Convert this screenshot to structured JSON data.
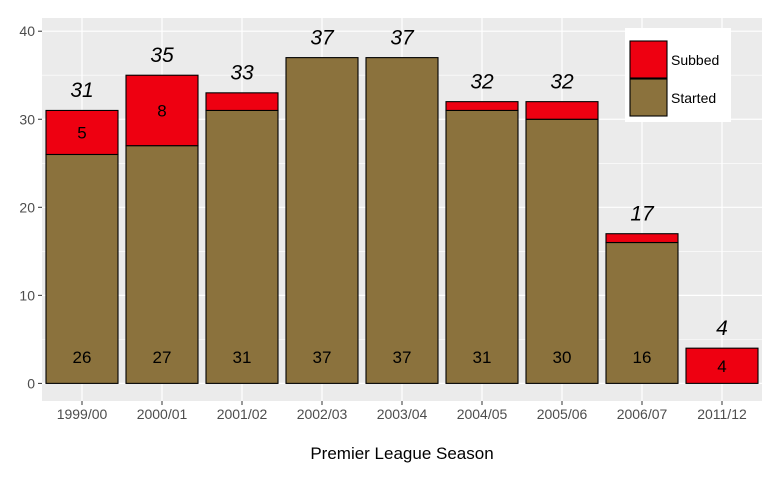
{
  "chart_data": {
    "type": "bar",
    "stacked": true,
    "categories": [
      "1999/00",
      "2000/01",
      "2001/02",
      "2002/03",
      "2003/04",
      "2004/05",
      "2005/06",
      "2006/07",
      "2011/12"
    ],
    "series": [
      {
        "name": "Started",
        "color": "#8B723D",
        "values": [
          26,
          27,
          31,
          37,
          37,
          31,
          30,
          16,
          0
        ]
      },
      {
        "name": "Subbed",
        "color": "#EE0011",
        "values": [
          5,
          8,
          2,
          0,
          0,
          1,
          2,
          1,
          4
        ]
      }
    ],
    "totals": [
      31,
      35,
      33,
      37,
      37,
      32,
      32,
      17,
      4
    ],
    "started_labels": [
      "26",
      "27",
      "31",
      "37",
      "37",
      "31",
      "30",
      "16",
      ""
    ],
    "subbed_labels": [
      "5",
      "8",
      "",
      "",
      "",
      "",
      "",
      "",
      "4"
    ],
    "total_labels": [
      "31",
      "35",
      "33",
      "37",
      "37",
      "32",
      "32",
      "17",
      "4"
    ],
    "xlabel": "Premier League Season",
    "ylabel": "",
    "ylim": [
      -2,
      41.5
    ],
    "yticks": [
      0,
      10,
      20,
      30,
      40
    ],
    "grid": true,
    "legend": {
      "position": "top-right",
      "entries": [
        {
          "label": "Subbed",
          "color": "#EE0011"
        },
        {
          "label": "Started",
          "color": "#8B723D"
        }
      ]
    }
  }
}
